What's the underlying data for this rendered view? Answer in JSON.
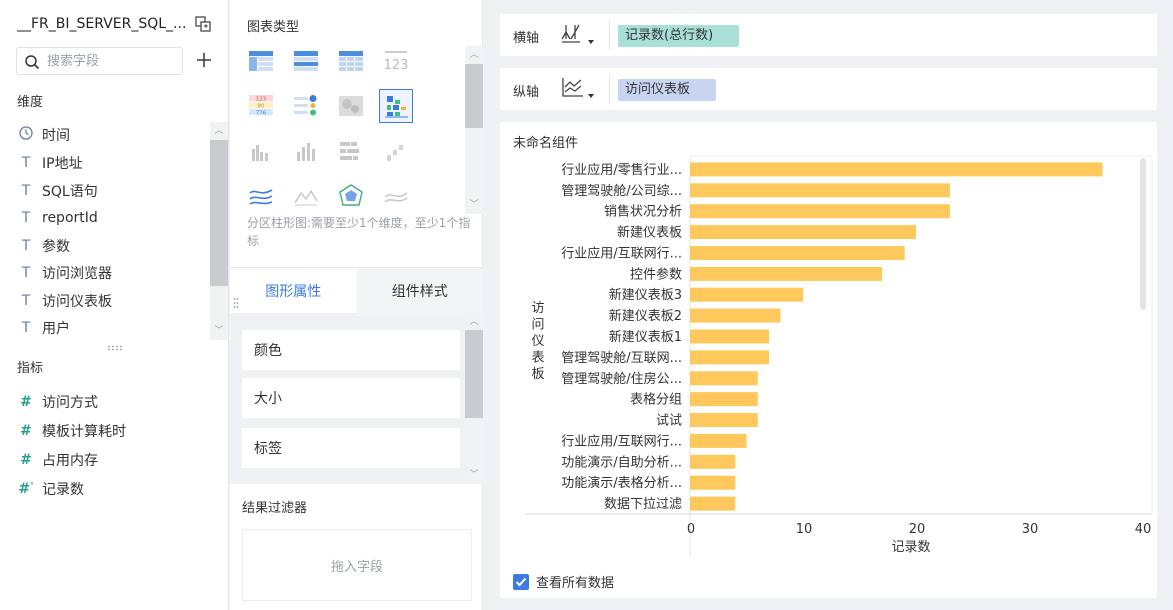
{
  "data_source": {
    "name": "__FR_BI_SERVER_SQL_...",
    "search_placeholder": "搜索字段"
  },
  "dimensions": {
    "title": "维度",
    "items": [
      {
        "label": "时间",
        "icon": "clock-icon"
      },
      {
        "label": "IP地址",
        "icon": "text-field-icon"
      },
      {
        "label": "SQL语句",
        "icon": "text-field-icon"
      },
      {
        "label": "reportId",
        "icon": "text-field-icon"
      },
      {
        "label": "参数",
        "icon": "text-field-icon"
      },
      {
        "label": "访问浏览器",
        "icon": "text-field-icon"
      },
      {
        "label": "访问仪表板",
        "icon": "text-field-icon"
      },
      {
        "label": "用户",
        "icon": "text-field-icon"
      }
    ]
  },
  "measures": {
    "title": "指标",
    "items": [
      {
        "label": "访问方式",
        "icon": "hash-icon"
      },
      {
        "label": "模板计算耗时",
        "icon": "hash-icon"
      },
      {
        "label": "占用内存",
        "icon": "hash-icon"
      },
      {
        "label": "记录数",
        "icon": "hash-count-icon"
      }
    ]
  },
  "chart_types": {
    "title": "图表类型",
    "hint": "分区柱形图:需要至少1个维度，至少1个指标",
    "selected": "partition-bar"
  },
  "tabs": [
    {
      "label": "图形属性",
      "active": true
    },
    {
      "label": "组件样式",
      "active": false
    }
  ],
  "properties": [
    "颜色",
    "大小",
    "标签"
  ],
  "filter": {
    "title": "结果过滤器",
    "placeholder": "拖入字段"
  },
  "axes": {
    "x": {
      "label": "横轴",
      "field": "记录数(总行数)"
    },
    "y": {
      "label": "纵轴",
      "field": "访问仪表板"
    }
  },
  "colors": {
    "accent": "#3d7be0",
    "bar": "#fec85d",
    "x_pill": "#a8e0d8",
    "y_pill": "#c7d5f2"
  },
  "widget": {
    "title": "未命名组件",
    "view_all_label": "查看所有数据",
    "view_all_checked": true
  },
  "chart_data": {
    "type": "bar",
    "orientation": "horizontal",
    "categories": [
      "行业应用/零售行业...",
      "管理驾驶舱/公司综...",
      "销售状况分析",
      "新建仪表板",
      "行业应用/互联网行...",
      "控件参数",
      "新建仪表板3",
      "新建仪表板2",
      "新建仪表板1",
      "管理驾驶舱/互联网...",
      "管理驾驶舱/住房公...",
      "表格分组",
      "试试",
      "行业应用/互联网行...",
      "功能演示/自助分析...",
      "功能演示/表格分析...",
      "数据下拉过滤"
    ],
    "values": [
      36.5,
      23,
      23,
      20,
      19,
      17,
      10,
      8,
      7,
      7,
      6,
      6,
      6,
      5,
      4,
      4,
      4
    ],
    "xlabel": "记录数",
    "ylabel": "访问仪表板",
    "xlim": [
      0,
      40
    ],
    "xticks": [
      0,
      10,
      20,
      30,
      40
    ],
    "grid": false
  }
}
